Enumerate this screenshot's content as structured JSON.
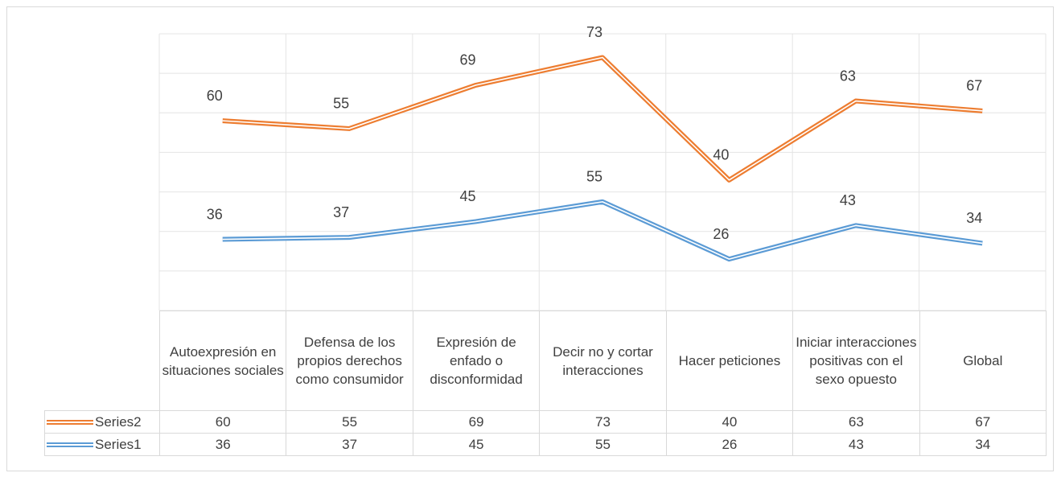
{
  "chart_data": {
    "type": "line",
    "stacked": true,
    "categories": [
      "Autoexpresión en situaciones sociales",
      "Defensa de los propios derechos como consumidor",
      "Expresión de enfado o disconformidad",
      "Decir no y cortar interacciones",
      "Hacer peticiones",
      "Iniciar interacciones positivas con el sexo opuesto",
      "Global"
    ],
    "series": [
      {
        "name": "Series1",
        "color": "#5b9bd5",
        "values": [
          36,
          37,
          45,
          55,
          26,
          43,
          34
        ]
      },
      {
        "name": "Series2",
        "color": "#ed7d31",
        "values": [
          60,
          55,
          69,
          73,
          40,
          63,
          67
        ]
      }
    ],
    "ylim": [
      0,
      140
    ],
    "yticks": [
      0,
      20,
      40,
      60,
      80,
      100,
      120,
      140
    ],
    "grid": true
  }
}
